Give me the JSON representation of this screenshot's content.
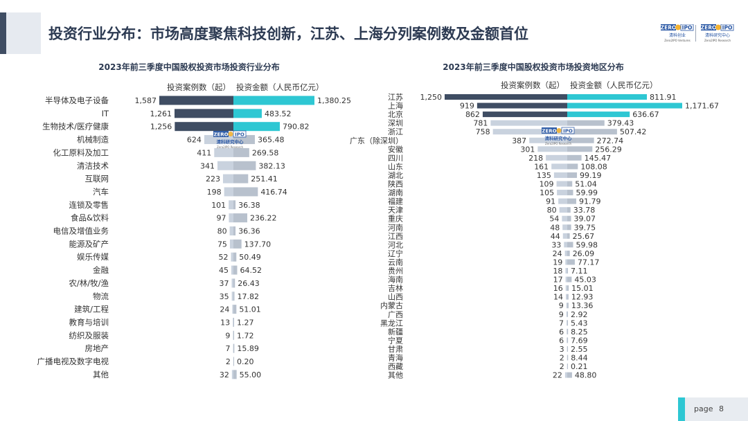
{
  "header": {
    "title": "投资行业分布：市场高度聚焦科技创新，江苏、上海分列案例数及金额首位"
  },
  "logos": {
    "left": {
      "mark_a": "ZERO",
      "mark_b": "IPO",
      "name": "清科创业",
      "sub": "Zero2IPO Ventures"
    },
    "right": {
      "mark_a": "ZERO",
      "mark_b": "IPO",
      "name": "清科研究中心",
      "sub": "Zero2IPO Research"
    }
  },
  "watermark": {
    "mark_a": "ZERO",
    "mark_b": "IPO",
    "name": "清科研究中心",
    "sub": "Zero2IPO Research"
  },
  "colors": {
    "dark": "#3f4d63",
    "teal": "#2ec7d3",
    "light_dark": "#c9d2de",
    "light_teal": "#b8c1cd"
  },
  "footer": {
    "page_label": "page",
    "page_number": "8"
  },
  "chart_data": [
    {
      "type": "bar",
      "title": "2023年前三季度中国股权投资市场投资行业分布",
      "legend": [
        "投资案例数（起）",
        "投资金额（人民币亿元）"
      ],
      "categories": [
        "半导体及电子设备",
        "IT",
        "生物技术/医疗健康",
        "机械制造",
        "化工原料及加工",
        "清洁技术",
        "互联网",
        "汽车",
        "连锁及零售",
        "食品&饮料",
        "电信及增值业务",
        "能源及矿产",
        "娱乐传媒",
        "金融",
        "农/林/牧/渔",
        "物流",
        "建筑/工程",
        "教育与培训",
        "纺织及服装",
        "房地产",
        "广播电视及数字电视",
        "其他"
      ],
      "counts": [
        1587,
        1261,
        1256,
        624,
        411,
        341,
        223,
        198,
        101,
        97,
        80,
        75,
        52,
        45,
        37,
        35,
        24,
        13,
        9,
        7,
        2,
        32
      ],
      "count_labels": [
        "1,587",
        "1,261",
        "1,256",
        "624",
        "411",
        "341",
        "223",
        "198",
        "101",
        "97",
        "80",
        "75",
        "52",
        "45",
        "37",
        "35",
        "24",
        "13",
        "9",
        "7",
        "2",
        "32"
      ],
      "amounts": [
        1380.25,
        483.52,
        790.82,
        365.48,
        269.58,
        382.13,
        251.41,
        416.74,
        36.38,
        236.22,
        36.36,
        137.7,
        50.49,
        64.52,
        26.43,
        17.82,
        51.01,
        1.27,
        1.72,
        15.89,
        0.2,
        55.0
      ],
      "amount_labels": [
        "1,380.25",
        "483.52",
        "790.82",
        "365.48",
        "269.58",
        "382.13",
        "251.41",
        "416.74",
        "36.38",
        "236.22",
        "36.36",
        "137.70",
        "50.49",
        "64.52",
        "26.43",
        "17.82",
        "51.01",
        "1.27",
        "1.72",
        "15.89",
        "0.20",
        "55.00"
      ],
      "highlight_top": 3
    },
    {
      "type": "bar",
      "title": "2023年前三季度中国股权投资市场投资地区分布",
      "legend": [
        "投资案例数（起）",
        "投资金额（人民币亿元）"
      ],
      "categories": [
        "江苏",
        "上海",
        "北京",
        "深圳",
        "浙江",
        "广东（除深圳）",
        "安徽",
        "四川",
        "山东",
        "湖北",
        "陕西",
        "湖南",
        "福建",
        "天津",
        "重庆",
        "河南",
        "江西",
        "河北",
        "辽宁",
        "云南",
        "贵州",
        "海南",
        "吉林",
        "山西",
        "内蒙古",
        "广西",
        "黑龙江",
        "新疆",
        "宁夏",
        "甘肃",
        "青海",
        "西藏",
        "其他"
      ],
      "counts": [
        1250,
        919,
        862,
        781,
        758,
        387,
        301,
        218,
        161,
        135,
        109,
        105,
        91,
        80,
        54,
        48,
        44,
        33,
        24,
        19,
        18,
        17,
        16,
        14,
        9,
        9,
        7,
        6,
        6,
        3,
        2,
        2,
        22
      ],
      "count_labels": [
        "1,250",
        "919",
        "862",
        "781",
        "758",
        "387",
        "301",
        "218",
        "161",
        "135",
        "109",
        "105",
        "91",
        "80",
        "54",
        "48",
        "44",
        "33",
        "24",
        "19",
        "18",
        "17",
        "16",
        "14",
        "9",
        "9",
        "7",
        "6",
        "6",
        "3",
        "2",
        "2",
        "22"
      ],
      "amounts": [
        811.91,
        1171.67,
        636.67,
        379.43,
        507.42,
        272.74,
        256.29,
        145.47,
        108.08,
        99.19,
        51.04,
        59.99,
        91.79,
        33.78,
        39.07,
        39.75,
        25.67,
        59.98,
        26.09,
        77.17,
        7.11,
        45.03,
        15.01,
        12.93,
        13.36,
        2.92,
        5.43,
        8.25,
        7.69,
        2.55,
        8.44,
        0.21,
        48.8
      ],
      "amount_labels": [
        "811.91",
        "1,171.67",
        "636.67",
        "379.43",
        "507.42",
        "272.74",
        "256.29",
        "145.47",
        "108.08",
        "99.19",
        "51.04",
        "59.99",
        "91.79",
        "33.78",
        "39.07",
        "39.75",
        "25.67",
        "59.98",
        "26.09",
        "77.17",
        "7.11",
        "45.03",
        "15.01",
        "12.93",
        "13.36",
        "2.92",
        "5.43",
        "8.25",
        "7.69",
        "2.55",
        "8.44",
        "0.21",
        "48.80"
      ],
      "highlight_top": 3
    }
  ]
}
